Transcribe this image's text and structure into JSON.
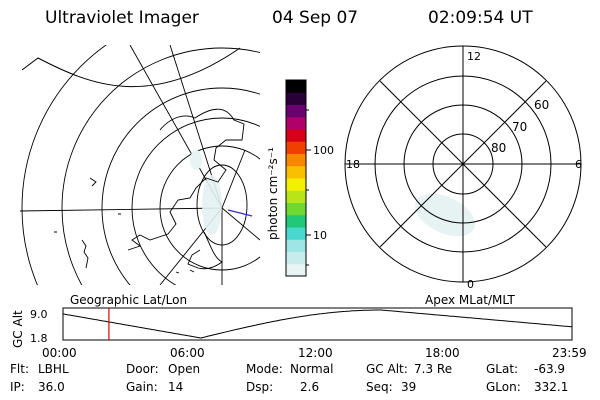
{
  "header": {
    "title": "Ultraviolet Imager",
    "date": "04 Sep 07",
    "time": "02:09:54 UT"
  },
  "colorbar": {
    "unit_label": "photon cm⁻²s⁻¹",
    "tick_100": "100",
    "tick_10": "10",
    "colors": [
      "#e8f4f4",
      "#c8ecec",
      "#9ee6e6",
      "#48d8d0",
      "#20c878",
      "#70d830",
      "#b8e418",
      "#f0f000",
      "#f8c000",
      "#f88800",
      "#f04000",
      "#d80018",
      "#b0006a",
      "#6a0070",
      "#2a0038",
      "#000000"
    ]
  },
  "left_map": {
    "caption": "Geographic Lat/Lon"
  },
  "right_map": {
    "caption": "Apex MLat/MLT",
    "mlt_labels": {
      "top": "12",
      "bottom": "0",
      "left": "18",
      "right": "6"
    },
    "lat_labels": [
      "60",
      "70",
      "80"
    ]
  },
  "altitude_plot": {
    "ylabel": "GC Alt",
    "y_top": "9.0",
    "y_bottom": "1.8",
    "x_ticks": [
      "00:00",
      "06:00",
      "12:00",
      "18:00",
      "23:59"
    ],
    "current_time_hours": 2.165,
    "min_time_hours": 6.5,
    "max_time_hours": 15.0
  },
  "status": {
    "filter_label": "Flt:",
    "filter_value": "LBHL",
    "ip_label": "IP:",
    "ip_value": "36.0",
    "door_label": "Door:",
    "door_value": "Open",
    "gain_label": "Gain:",
    "gain_value": "14",
    "mode_label": "Mode:",
    "mode_value": "Normal",
    "dsp_label": "Dsp:",
    "dsp_value": "2.6",
    "gcalt_label": "GC Alt:",
    "gcalt_value": "7.3 Re",
    "seq_label": "Seq:",
    "seq_value": "39",
    "glat_label": "GLat:",
    "glat_value": "-63.9",
    "glon_label": "GLon:",
    "glon_value": "332.1"
  }
}
